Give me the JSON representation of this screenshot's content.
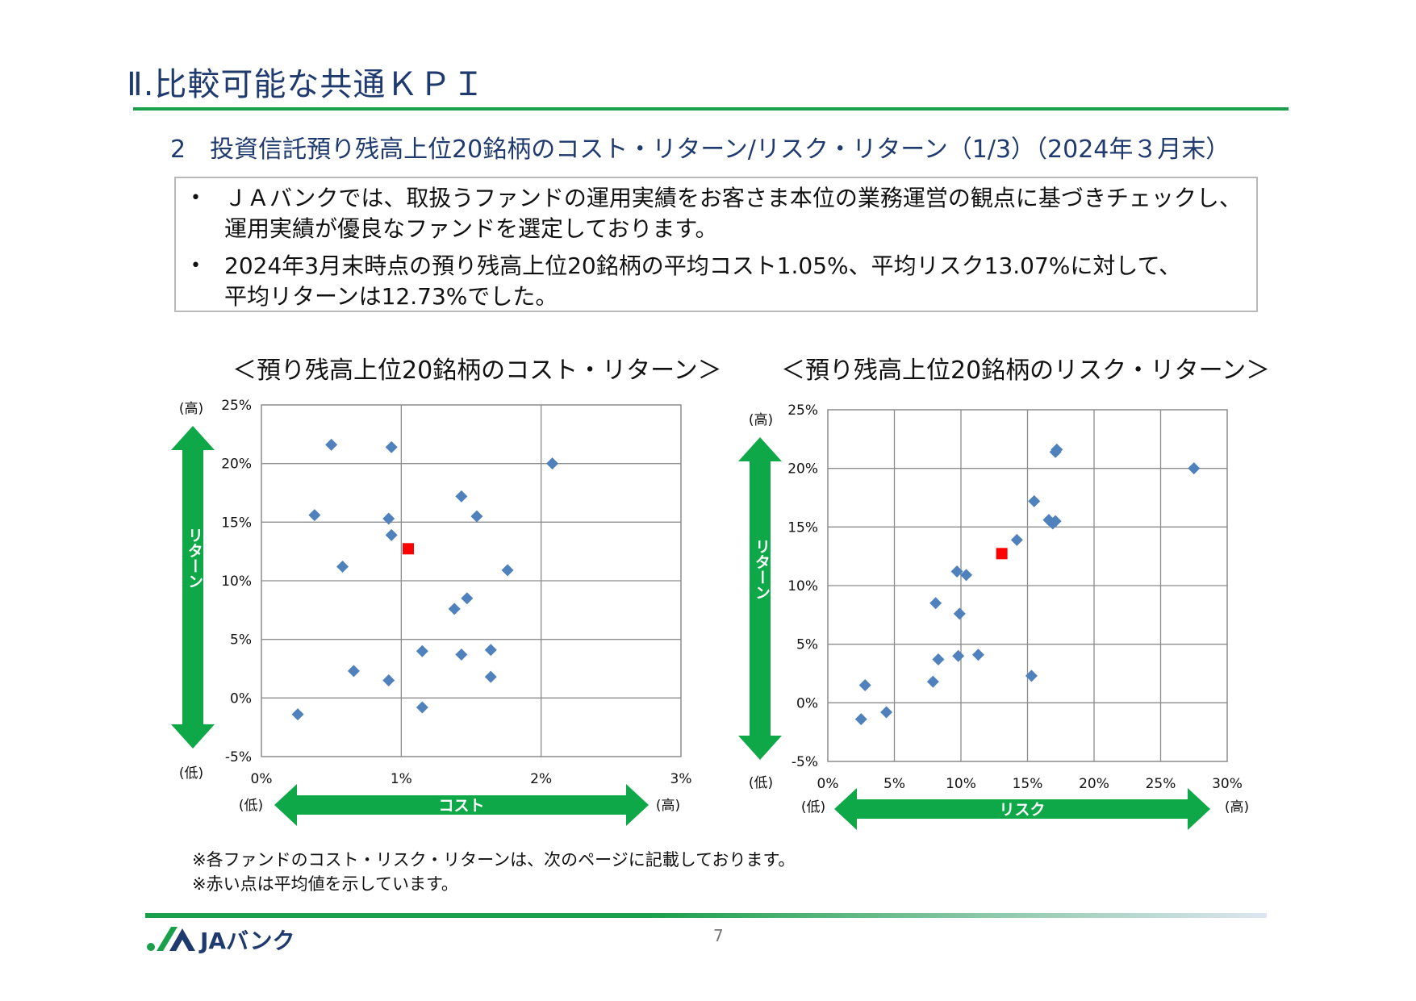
{
  "header": {
    "title": "Ⅱ.比較可能な共通ＫＰＩ",
    "subtitle": "2　投資信託預り残高上位20銘柄のコスト・リターン/リスク・リターン（1/3）（2024年３月末）"
  },
  "info": {
    "bullet_symbol": "•",
    "bullet1_line1": "ＪＡバンクでは、取扱うファンドの運用実績をお客さま本位の業務運営の観点に基づきチェックし、",
    "bullet1_line2": "運用実績が優良なファンドを選定しております。",
    "bullet2_line1": "2024年3月末時点の預り残高上位20銘柄の平均コスト1.05%、平均リスク13.07%に対して、",
    "bullet2_line2": "平均リターンは12.73%でした。"
  },
  "chart_data": [
    {
      "type": "scatter",
      "title": "＜預り残高上位20銘柄のコスト・リターン＞",
      "xlabel": "コスト",
      "ylabel": "リターン",
      "xlim": [
        0,
        3
      ],
      "ylim": [
        -5,
        25
      ],
      "x_ticks": [
        "0%",
        "1%",
        "2%",
        "3%"
      ],
      "y_ticks": [
        "25%",
        "20%",
        "15%",
        "10%",
        "5%",
        "0%",
        "-5%"
      ],
      "high_label": "(高)",
      "low_label": "(低)",
      "grid": true,
      "series": [
        {
          "color": "#4f81bd",
          "marker": "diamond",
          "points": [
            [
              0.5,
              21.6
            ],
            [
              0.93,
              21.4
            ],
            [
              2.08,
              20.0
            ],
            [
              1.43,
              17.2
            ],
            [
              0.38,
              15.6
            ],
            [
              1.54,
              15.5
            ],
            [
              0.91,
              15.3
            ],
            [
              0.93,
              13.9
            ],
            [
              1.76,
              10.9
            ],
            [
              0.58,
              11.2
            ],
            [
              1.47,
              8.5
            ],
            [
              1.38,
              7.6
            ],
            [
              1.15,
              4.0
            ],
            [
              1.64,
              4.1
            ],
            [
              1.43,
              3.7
            ],
            [
              0.66,
              2.3
            ],
            [
              0.91,
              1.5
            ],
            [
              1.64,
              1.8
            ],
            [
              1.15,
              -0.8
            ],
            [
              0.26,
              -1.4
            ]
          ]
        },
        {
          "color": "#ff0000",
          "marker": "square",
          "points": [
            [
              1.05,
              12.73
            ]
          ]
        }
      ]
    },
    {
      "type": "scatter",
      "title": "＜預り残高上位20銘柄のリスク・リターン＞",
      "xlabel": "リスク",
      "ylabel": "リターン",
      "xlim": [
        0,
        30
      ],
      "ylim": [
        -5,
        25
      ],
      "x_ticks": [
        "0%",
        "5%",
        "10%",
        "15%",
        "20%",
        "25%",
        "30%"
      ],
      "y_ticks": [
        "25%",
        "20%",
        "15%",
        "10%",
        "5%",
        "0%",
        "-5%"
      ],
      "high_label": "(高)",
      "low_label": "(低)",
      "grid": true,
      "series": [
        {
          "color": "#4f81bd",
          "marker": "diamond",
          "points": [
            [
              17.2,
              21.6
            ],
            [
              17.1,
              21.4
            ],
            [
              27.5,
              20.0
            ],
            [
              15.5,
              17.2
            ],
            [
              16.6,
              15.6
            ],
            [
              17.1,
              15.5
            ],
            [
              16.9,
              15.3
            ],
            [
              14.2,
              13.9
            ],
            [
              9.7,
              11.2
            ],
            [
              10.4,
              10.9
            ],
            [
              8.1,
              8.5
            ],
            [
              9.9,
              7.6
            ],
            [
              11.3,
              4.1
            ],
            [
              9.8,
              4.0
            ],
            [
              8.3,
              3.7
            ],
            [
              15.3,
              2.3
            ],
            [
              7.9,
              1.8
            ],
            [
              2.8,
              1.5
            ],
            [
              4.4,
              -0.8
            ],
            [
              2.5,
              -1.4
            ]
          ]
        },
        {
          "color": "#ff0000",
          "marker": "square",
          "points": [
            [
              13.07,
              12.73
            ]
          ]
        }
      ]
    }
  ],
  "notes": [
    "※各ファンドのコスト・リスク・リターンは、次のページに記載しております。",
    "※赤い点は平均値を示しています。"
  ],
  "footer": {
    "page_number": "7",
    "logo_text": "JAバンク"
  },
  "colors": {
    "title_blue": "#1f3a6e",
    "green": "#1aa04a",
    "arrow_green": "#0fa848",
    "marker_blue": "#4f81bd",
    "average_red": "#ff0000"
  }
}
